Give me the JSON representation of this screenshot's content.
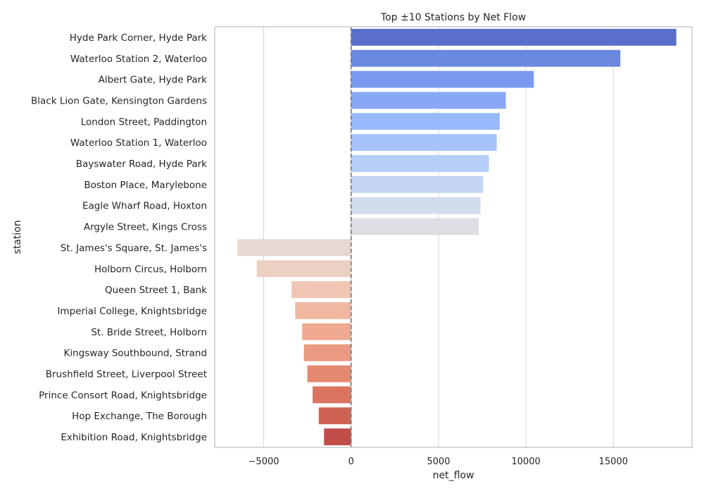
{
  "chart_data": {
    "type": "bar",
    "orientation": "horizontal",
    "title": "Top ±10 Stations by Net Flow",
    "xlabel": "net_flow",
    "ylabel": "station",
    "xlim": [
      -7800,
      19500
    ],
    "xticks": [
      -5000,
      0,
      5000,
      10000,
      15000
    ],
    "xtick_labels": [
      "−5000",
      "0",
      "5000",
      "10000",
      "15000"
    ],
    "grid": "vertical",
    "reference_line": 0,
    "palette": "coolwarm",
    "categories": [
      "Hyde Park Corner, Hyde Park",
      "Waterloo Station 2, Waterloo",
      "Albert Gate, Hyde Park",
      "Black Lion Gate, Kensington Gardens",
      "London Street, Paddington",
      "Waterloo Station 1, Waterloo",
      "Bayswater Road, Hyde Park",
      "Boston Place, Marylebone",
      "Eagle Wharf Road, Hoxton",
      "Argyle Street, Kings Cross",
      "St. James's Square, St. James's",
      "Holborn Circus, Holborn",
      "Queen Street 1, Bank",
      "Imperial College, Knightsbridge",
      "St. Bride Street, Holborn",
      "Kingsway Southbound, Strand",
      "Brushfield Street, Liverpool Street",
      "Prince Consort Road, Knightsbridge",
      "Hop Exchange, The Borough",
      "Exhibition Road, Knightsbridge"
    ],
    "values": [
      18600,
      15400,
      10450,
      8850,
      8500,
      8330,
      7880,
      7560,
      7400,
      7300,
      -6500,
      -5400,
      -3400,
      -3200,
      -2800,
      -2700,
      -2500,
      -2200,
      -1850,
      -1550
    ],
    "colors": [
      "#5a6fcb",
      "#6a88de",
      "#7a9af0",
      "#88a8f6",
      "#97b8fb",
      "#a6c3fb",
      "#b5cdf9",
      "#c4d5f4",
      "#d1dced",
      "#dddde3",
      "#e6d8d2",
      "#ecd0c3",
      "#efc5b3",
      "#f0b8a0",
      "#eea990",
      "#ea9a80",
      "#e48a70",
      "#da7461",
      "#cf6253",
      "#c24d48"
    ]
  }
}
